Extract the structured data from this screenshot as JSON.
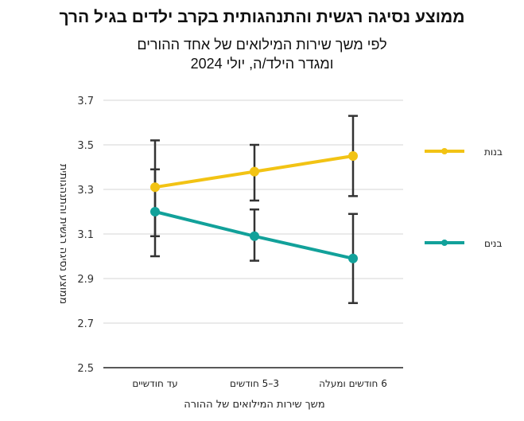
{
  "chart_data": {
    "type": "line",
    "title": "ממוצע נסיגה רגשית והתנהגותית בקרב ילדים בגיל הרך",
    "subtitle": [
      "לפי משך שירות המילואים של אחד ההורים",
      "ומגדר הילד/ה, יולי 2024"
    ],
    "xlabel": "משך שירות המילואים של ההורה",
    "ylabel": "ממוצע נסיגה רגשית והתנהגותית",
    "categories": [
      "עד חודשיים",
      "3–5 חודשים",
      "6 חודשים ומעלה"
    ],
    "ylim": [
      2.5,
      3.7
    ],
    "yticks": [
      "2.5",
      "2.7",
      "2.9",
      "3.1",
      "3.3",
      "3.5",
      "3.7"
    ],
    "grid": true,
    "legend_placement": "right",
    "series": [
      {
        "name": "בנות",
        "color": "#F2C314",
        "values": [
          3.31,
          3.38,
          3.45
        ],
        "error_low": [
          3.09,
          3.25,
          3.27
        ],
        "error_high": [
          3.52,
          3.5,
          3.63
        ]
      },
      {
        "name": "בנים",
        "color": "#12A19A",
        "values": [
          3.2,
          3.09,
          2.99
        ],
        "error_low": [
          3.0,
          2.98,
          2.79
        ],
        "error_high": [
          3.39,
          3.21,
          3.19
        ]
      }
    ]
  }
}
